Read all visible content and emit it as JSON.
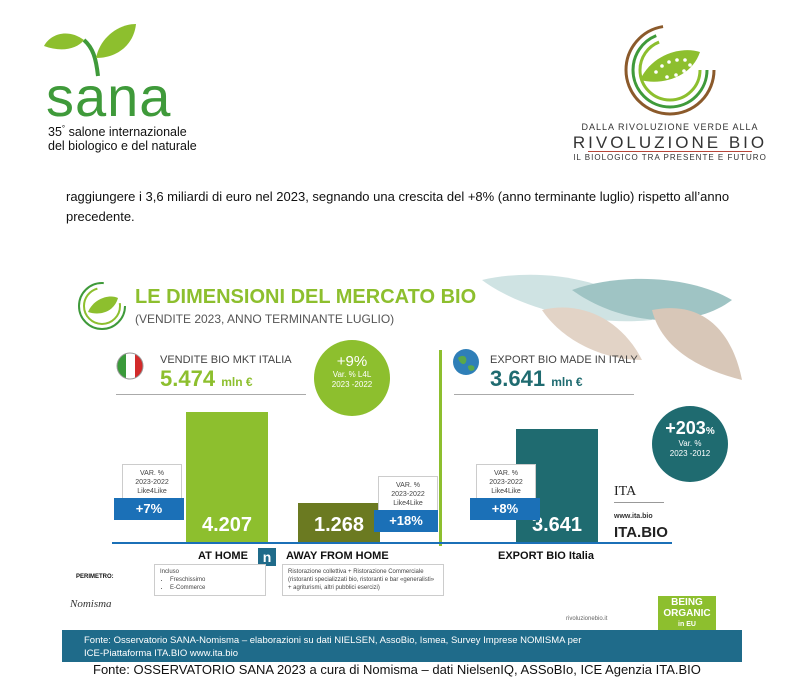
{
  "sana": {
    "word": "sana",
    "edition": "35",
    "edition_sup": "°",
    "line1": " salone internazionale",
    "line2": "del biologico e del naturale"
  },
  "rivoluzione": {
    "line1": "DALLA RIVOLUZIONE VERDE ALLA",
    "line2": "RIVOLUZIONE BIO",
    "line3": "IL BIOLOGICO TRA PRESENTE E FUTURO"
  },
  "intro_text": "raggiungere i 3,6 miliardi di euro nel 2023, segnando una crescita del +8% (anno terminante luglio) rispetto all’anno precedente.",
  "infographic": {
    "title": "LE DIMENSIONI DEL MERCATO BIO",
    "subtitle": "(VENDITE 2023, ANNO TERMINANTE LUGLIO)",
    "italy": {
      "label": "VENDITE BIO MKT ITALIA",
      "value": "5.474",
      "unit": "mln €",
      "growth_pct": "+9%",
      "growth_note1": "Var. % L4L",
      "growth_note2": "2023 -2022"
    },
    "export": {
      "label": "EXPORT BIO MADE IN ITALY",
      "value": "3.641",
      "unit": "mln €",
      "growth_pct": "+203",
      "growth_pct_suffix": "%",
      "growth_note1": "Var. %",
      "growth_note2": "2023 -2012"
    },
    "var_box": {
      "line1": "VAR. %",
      "line2": "2023-2022",
      "line3": "Like4Like"
    },
    "bars": [
      {
        "category": "AT HOME",
        "value": 4207,
        "value_label": "4.207",
        "var": "+7%"
      },
      {
        "category": "AWAY FROM HOME",
        "value": 1268,
        "value_label": "1.268",
        "var": "+18%"
      },
      {
        "category": "EXPORT BIO Italia",
        "value": 3641,
        "value_label": "3.641",
        "var": "+8%"
      }
    ],
    "at_home_note": {
      "title": "Incluso",
      "items": [
        "Freschissimo",
        "E-Commerce"
      ]
    },
    "away_note": "Ristorazione collettiva + Ristorazione Commerciale (ristoranti specializzati bio, ristoranti e bar «generalisti» + agriturismi, altri pubblici esercizi)",
    "perimetro": "PERIMETRO:",
    "nomisma": "Nomisma",
    "site": "rivoluzionebio.it",
    "ita_url": "www.ita.bio",
    "ita_bio": "ITA.BIO",
    "ita_small": "ITA",
    "being_organic": [
      "BEING",
      "ORGANIC",
      "in EU"
    ],
    "footer_line1": "Fonte: Osservatorio SANA-Nomisma – elaborazioni su dati NIELSEN, AssoBio, Ismea, Survey Imprese NOMISMA per",
    "footer_line2": "ICE-Piattaforma ITA.BIO www.ita.bio",
    "colors": {
      "green": "#8dbf2e",
      "olive": "#6b7a21",
      "teal": "#1f6b70",
      "blue": "#1b70b7",
      "dark_green": "#3f9a3a"
    }
  },
  "caption": "Fonte: OSSERVATORIO SANA 2023 a cura di Nomisma – dati NielsenIQ, ASSoBIo, ICE Agenzia ITA.BIO"
}
